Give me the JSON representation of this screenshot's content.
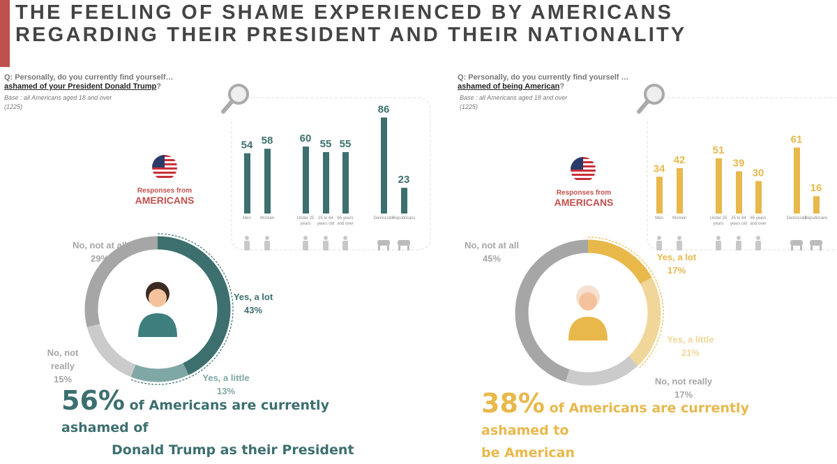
{
  "title": "THE FEELING OF SHAME EXPERIENCED BY AMERICANS REGARDING THEIR PRESIDENT AND THEIR NATIONALITY",
  "colors": {
    "accent_red": "#c0504d",
    "teal": "#3d6f6f",
    "teal_light": "#7fa7a5",
    "gold": "#e8b84b",
    "gold_light": "#f1d699",
    "gray": "#a6a6a6",
    "gray_light": "#cbcbcb"
  },
  "left": {
    "question_prefix": "Q: Personally, do you currently find yourself…",
    "question_emph": "ashamed of your President Donald Trump",
    "question_suffix": "?",
    "base": "Base : all Americans aged 18 and over (1225)",
    "responses_small": "Responses from",
    "responses_big": "AMERICANS",
    "headline_pct": "56%",
    "headline_1": "of Americans are currently ashamed of",
    "headline_2": "Donald Trump as their President"
  },
  "right": {
    "question_prefix": "Q: Personally, do you currently find yourself …",
    "question_emph": "ashamed of being American",
    "question_suffix": "?",
    "base": "Base : all Americans aged 18 and over (1225)",
    "responses_small": "Responses from",
    "responses_big": "AMERICANS",
    "headline_pct": "38%",
    "headline_1": "of Americans are currently ashamed to",
    "headline_2": "be American"
  },
  "chart_data": [
    {
      "type": "bar",
      "categories": [
        "Men",
        "Women",
        "Under 25 years",
        "25 to 64 years old",
        "65 years and over",
        "Democrats",
        "Republicans"
      ],
      "values": [
        54,
        58,
        60,
        55,
        55,
        86,
        23
      ],
      "color": "#3d6f6f"
    },
    {
      "type": "pie",
      "donut": true,
      "slices": [
        {
          "label": "Yes, a lot",
          "pct_label": "43%",
          "value": 43,
          "color": "#3d6f6f"
        },
        {
          "label": "Yes, a little",
          "pct_label": "13%",
          "value": 13,
          "color": "#7fa7a5"
        },
        {
          "label": "No, not really",
          "pct_label": "15%",
          "value": 15,
          "color": "#cbcbcb"
        },
        {
          "label": "No, not at all",
          "pct_label": "29%",
          "value": 29,
          "color": "#a6a6a6"
        }
      ]
    },
    {
      "type": "bar",
      "categories": [
        "Men",
        "Women",
        "Under 25 years",
        "25 to 64 years old",
        "65 years and over",
        "Democrats",
        "Republicans"
      ],
      "values": [
        34,
        42,
        51,
        39,
        30,
        61,
        16
      ],
      "color": "#e8b84b"
    },
    {
      "type": "pie",
      "donut": true,
      "slices": [
        {
          "label": "Yes, a lot",
          "pct_label": "17%",
          "value": 17,
          "color": "#e8b84b"
        },
        {
          "label": "Yes, a little",
          "pct_label": "21%",
          "value": 21,
          "color": "#f1d699"
        },
        {
          "label": "No, not really",
          "pct_label": "17%",
          "value": 17,
          "color": "#cbcbcb"
        },
        {
          "label": "No, not at all",
          "pct_label": "45%",
          "value": 45,
          "color": "#a6a6a6"
        }
      ]
    }
  ]
}
